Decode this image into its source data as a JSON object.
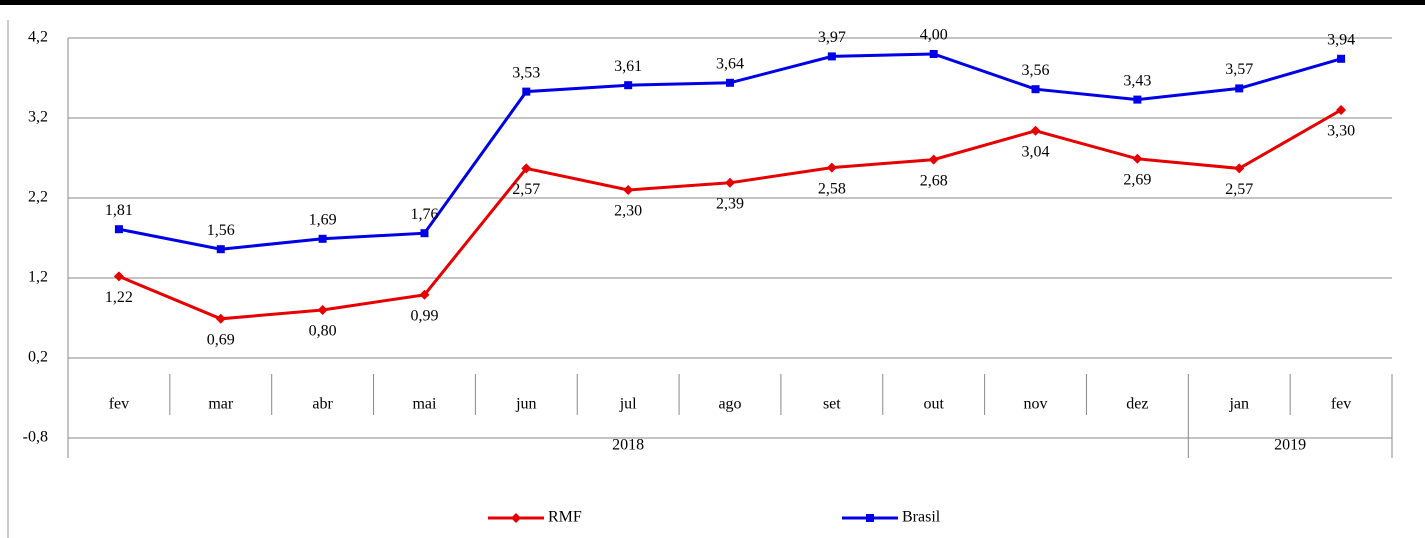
{
  "chart_data": {
    "type": "line",
    "categories": [
      "fev",
      "mar",
      "abr",
      "mai",
      "jun",
      "jul",
      "ago",
      "set",
      "out",
      "nov",
      "dez",
      "jan",
      "fev"
    ],
    "groups": [
      {
        "name": "2018",
        "count": 11
      },
      {
        "name": "2019",
        "count": 2
      }
    ],
    "series": [
      {
        "name": "RMF",
        "color": "#e60000",
        "marker": "diamond",
        "values": [
          1.22,
          0.69,
          0.8,
          0.99,
          2.57,
          2.3,
          2.39,
          2.58,
          2.68,
          3.04,
          2.69,
          2.57,
          3.3
        ],
        "value_labels": [
          "1,22",
          "0,69",
          "0,80",
          "0,99",
          "2,57",
          "2,30",
          "2,39",
          "2,58",
          "2,68",
          "3,04",
          "2,69",
          "2,57",
          "3,30"
        ]
      },
      {
        "name": "Brasil",
        "color": "#0000e6",
        "marker": "square",
        "values": [
          1.81,
          1.56,
          1.69,
          1.76,
          3.53,
          3.61,
          3.64,
          3.97,
          4.0,
          3.56,
          3.43,
          3.57,
          3.94
        ],
        "value_labels": [
          "1,81",
          "1,56",
          "1,69",
          "1,76",
          "3,53",
          "3,61",
          "3,64",
          "3,97",
          "4,00",
          "3,56",
          "3,43",
          "3,57",
          "3,94"
        ]
      }
    ],
    "ylim": [
      -0.8,
      4.2
    ],
    "yticks": [
      {
        "value": -0.8,
        "label": "-0,8"
      },
      {
        "value": 0.2,
        "label": "0,2"
      },
      {
        "value": 1.2,
        "label": "1,2"
      },
      {
        "value": 2.2,
        "label": "2,2"
      },
      {
        "value": 3.2,
        "label": "3,2"
      },
      {
        "value": 4.2,
        "label": "4,2"
      }
    ],
    "grid": true,
    "legend": "bottom"
  }
}
